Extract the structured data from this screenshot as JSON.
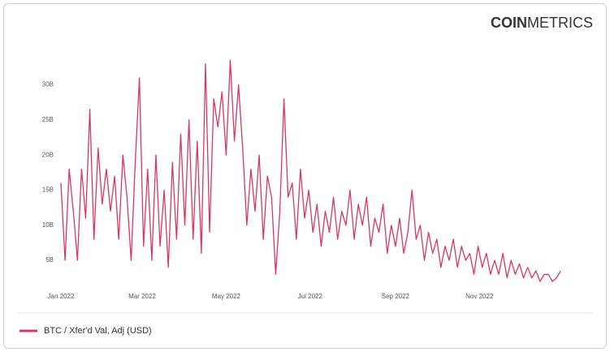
{
  "brand": {
    "bold": "COIN",
    "light": "METRICS"
  },
  "chart_data": {
    "type": "line",
    "x": [
      0,
      3,
      6,
      9,
      12,
      15,
      18,
      21,
      24,
      27,
      30,
      33,
      36,
      39,
      42,
      45,
      48,
      51,
      54,
      57,
      60,
      63,
      66,
      69,
      72,
      75,
      78,
      81,
      84,
      87,
      90,
      93,
      96,
      99,
      102,
      105,
      108,
      111,
      114,
      117,
      120,
      123,
      126,
      129,
      132,
      135,
      138,
      141,
      144,
      147,
      150,
      153,
      156,
      159,
      162,
      165,
      168,
      171,
      174,
      177,
      180,
      183,
      186,
      189,
      192,
      195,
      198,
      201,
      204,
      207,
      210,
      213,
      216,
      219,
      222,
      225,
      228,
      231,
      234,
      237,
      240,
      243,
      246,
      249,
      252,
      255,
      258,
      261,
      264,
      267,
      270,
      273,
      276,
      279,
      282,
      285,
      288,
      291,
      294,
      297,
      300,
      303,
      306,
      309,
      312,
      315,
      318,
      321,
      324,
      327,
      330,
      333,
      336,
      339,
      342,
      345,
      348,
      351,
      354,
      357,
      360,
      363
    ],
    "series": [
      {
        "name": "BTC / Xfer'd Val, Adj (USD)",
        "color": "#d63864",
        "values": [
          16,
          5,
          18,
          12,
          5,
          18,
          11,
          26.5,
          8,
          21,
          13,
          18,
          12,
          17,
          8,
          20,
          14,
          5,
          19,
          31,
          7,
          18,
          5,
          20,
          7,
          15,
          4,
          19,
          8,
          23,
          10,
          25,
          8,
          22,
          6,
          33,
          9,
          28,
          24,
          29,
          20,
          33.5,
          22,
          30,
          21,
          10,
          18,
          12,
          20,
          8,
          17,
          14,
          3,
          12,
          28,
          14,
          16,
          8,
          18,
          11,
          15,
          9,
          13,
          7,
          12,
          9,
          14,
          8,
          12,
          10,
          15,
          8,
          13,
          10,
          14,
          7,
          11,
          9,
          13,
          6,
          10,
          7,
          11,
          6,
          9,
          15,
          8,
          10,
          5,
          9,
          6,
          8,
          4,
          7,
          5,
          8,
          4,
          7,
          5,
          6,
          3,
          7,
          4,
          6,
          3,
          5,
          3,
          6,
          2.5,
          5,
          3,
          4.5,
          2.5,
          4,
          2.5,
          3.5,
          2,
          3,
          3,
          2,
          2.5,
          3.5
        ]
      }
    ],
    "xlim": [
      0,
      364
    ],
    "xticks": [
      {
        "value": 0,
        "label": "Jan 2022"
      },
      {
        "value": 59,
        "label": "Mar 2022"
      },
      {
        "value": 120,
        "label": "May 2022"
      },
      {
        "value": 181,
        "label": "Jul 2022"
      },
      {
        "value": 243,
        "label": "Sep 2022"
      },
      {
        "value": 304,
        "label": "Nov 2022"
      }
    ],
    "ylim": [
      2,
      34
    ],
    "yticks": [
      {
        "value": 5,
        "label": "5B"
      },
      {
        "value": 10,
        "label": "10B"
      },
      {
        "value": 15,
        "label": "15B"
      },
      {
        "value": 20,
        "label": "20B"
      },
      {
        "value": 25,
        "label": "25B"
      },
      {
        "value": 30,
        "label": "30B"
      }
    ],
    "grid": false
  }
}
